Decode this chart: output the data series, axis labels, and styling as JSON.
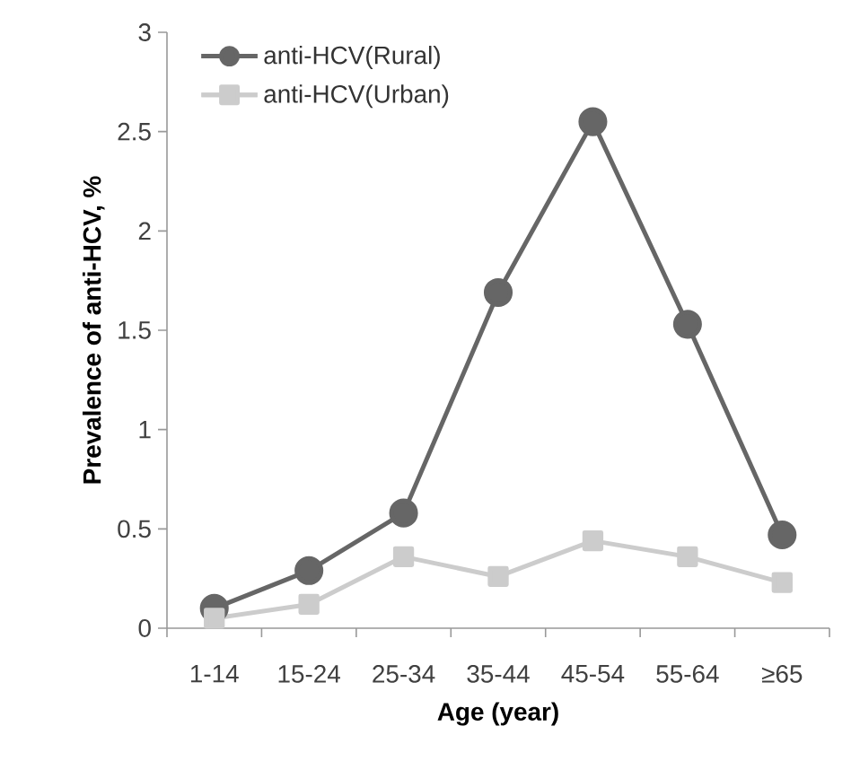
{
  "chart_data": {
    "type": "line",
    "xlabel": "Age (year)",
    "ylabel": "Prevalence of anti-HCV, %",
    "categories": [
      "1-14",
      "15-24",
      "25-34",
      "35-44",
      "45-54",
      "55-64",
      "≥65"
    ],
    "series": [
      {
        "name": "anti-HCV(Rural)",
        "color": "#666666",
        "marker": "circle",
        "values": [
          0.1,
          0.29,
          0.58,
          1.69,
          2.55,
          1.53,
          0.47
        ]
      },
      {
        "name": "anti-HCV(Urban)",
        "color": "#cccccc",
        "marker": "square",
        "values": [
          0.05,
          0.12,
          0.36,
          0.26,
          0.44,
          0.36,
          0.23
        ]
      }
    ],
    "ylim": [
      0,
      3
    ],
    "yticks": [
      0,
      0.5,
      1,
      1.5,
      2,
      2.5,
      3
    ],
    "grid": false,
    "legend": "top left",
    "line_style": "solid"
  }
}
